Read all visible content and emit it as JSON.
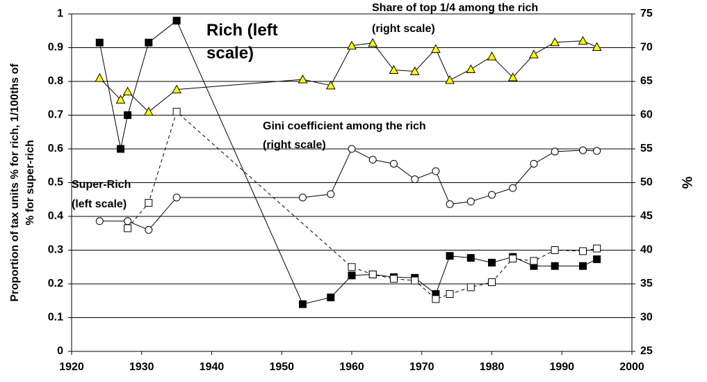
{
  "chart_data": {
    "type": "line",
    "y_label_lines": [
      "Proportion of tax units % for rich, 1/100ths of",
      "% for super-rich"
    ],
    "y2_label": "%",
    "xlim": [
      1920,
      2000
    ],
    "xticks": [
      1920,
      1930,
      1940,
      1950,
      1960,
      1970,
      1980,
      1990,
      2000
    ],
    "ylim": [
      0,
      1
    ],
    "yticks": [
      0,
      0.1,
      0.2,
      0.3,
      0.4,
      0.5,
      0.6,
      0.7,
      0.8,
      0.9,
      1
    ],
    "y2lim": [
      25,
      75
    ],
    "y2ticks": [
      25,
      30,
      35,
      40,
      45,
      50,
      55,
      60,
      65,
      70,
      75
    ],
    "grid": true,
    "series": [
      {
        "label_lines": [
          "Rich (left",
          "scale)"
        ],
        "color": "#000000",
        "marker": "filled-square",
        "dashed": false,
        "axis": "y",
        "x": [
          1924,
          1927,
          1928,
          1931,
          1935,
          1953,
          1957,
          1960,
          1963,
          1966,
          1969,
          1972,
          1974,
          1977,
          1980,
          1983,
          1986,
          1989,
          1993,
          1995
        ],
        "values": [
          0.915,
          0.6,
          0.7,
          0.915,
          0.98,
          0.14,
          0.16,
          0.225,
          0.228,
          0.22,
          0.218,
          0.17,
          0.283,
          0.277,
          0.263,
          0.28,
          0.253,
          0.253,
          0.253,
          0.273
        ]
      },
      {
        "label_lines": [
          "Super-Rich",
          "(left scale)"
        ],
        "color": "#000000",
        "marker": "open-square",
        "dashed": true,
        "axis": "y",
        "x": [
          1928,
          1931,
          1935,
          1960,
          1963,
          1966,
          1969,
          1972,
          1974,
          1977,
          1980,
          1983,
          1986,
          1989,
          1993,
          1995
        ],
        "values": [
          0.365,
          0.44,
          0.71,
          0.25,
          0.228,
          0.215,
          0.21,
          0.155,
          0.17,
          0.19,
          0.205,
          0.275,
          0.268,
          0.3,
          0.297,
          0.305
        ]
      },
      {
        "label_lines": [
          "Gini coefficient among the rich",
          "(right scale)"
        ],
        "color": "#000000",
        "marker": "open-circle",
        "dashed": false,
        "axis": "y2",
        "x": [
          1924,
          1928,
          1931,
          1935,
          1953,
          1957,
          1960,
          1963,
          1966,
          1969,
          1972,
          1974,
          1977,
          1980,
          1983,
          1986,
          1989,
          1993,
          1995
        ],
        "values": [
          44.3,
          44.3,
          43.0,
          47.8,
          47.8,
          48.3,
          55.0,
          53.4,
          52.8,
          50.5,
          51.7,
          46.8,
          47.2,
          48.2,
          49.2,
          52.8,
          54.6,
          54.8,
          54.7
        ]
      },
      {
        "label_lines": [
          "Share of top 1/4 among the rich",
          "(right scale)"
        ],
        "color": "#ffff00",
        "marker": "triangle",
        "dashed": false,
        "axis": "y2",
        "x": [
          1924,
          1927,
          1928,
          1931,
          1935,
          1953,
          1957,
          1960,
          1963,
          1966,
          1969,
          1972,
          1974,
          1977,
          1980,
          1983,
          1986,
          1989,
          1993,
          1995
        ],
        "values": [
          65.5,
          62.3,
          63.5,
          60.5,
          63.8,
          65.3,
          64.4,
          70.3,
          70.7,
          66.7,
          66.5,
          69.8,
          65.2,
          66.8,
          68.7,
          65.6,
          69.0,
          70.8,
          71.0,
          70.1
        ]
      }
    ]
  }
}
